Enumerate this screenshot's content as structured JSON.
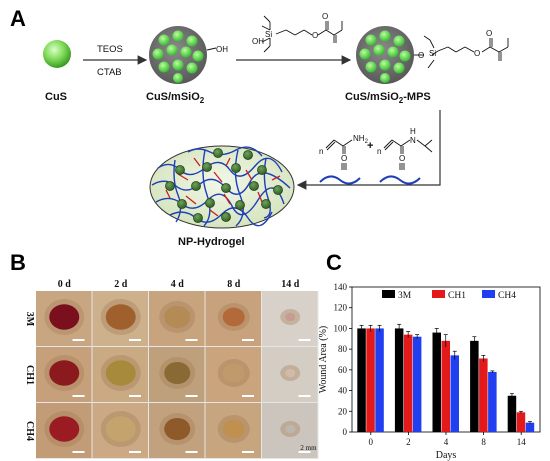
{
  "panels": {
    "a": {
      "letter": "A",
      "reagents_top": "TEOS",
      "reagents_bottom": "CTAB",
      "cus_label": "CuS",
      "cus_msio2_label": "CuS/mSiO",
      "cus_msio2_sub": "2",
      "oh_label": "OH",
      "mps_label_pre": "CuS/mSiO",
      "mps_label_sub": "2",
      "mps_label_post": "-MPS",
      "hydrogel_label": "NP-Hydrogel",
      "plus": "+",
      "nh2": "NH",
      "nh2_sub": "2",
      "h_atom": "H",
      "n_atom": "N",
      "o_atom": "O",
      "si_atom": "Si",
      "n_prefix": "n",
      "colors": {
        "sphere": "#7ed957",
        "shell": "#7a7a7a",
        "gel": "#e3edd2",
        "chain_blue": "#1f3fb8",
        "chain_red": "#cc1f1f"
      }
    },
    "b": {
      "letter": "B",
      "columns": [
        "0 d",
        "2 d",
        "4 d",
        "8 d",
        "14 d"
      ],
      "rows": [
        "3M",
        "CH1",
        "CH4"
      ],
      "scale_label": "2 mm"
    },
    "c": {
      "letter": "C"
    }
  },
  "chart_data": {
    "type": "bar",
    "categories": [
      "0",
      "2",
      "4",
      "8",
      "14"
    ],
    "series": [
      {
        "name": "3M",
        "values": [
          100,
          100,
          96,
          88,
          35
        ],
        "errors": [
          3,
          4,
          4,
          4,
          2
        ],
        "color": "#000000"
      },
      {
        "name": "CH1",
        "values": [
          100,
          94,
          88,
          71,
          19
        ],
        "errors": [
          3,
          3,
          6,
          3,
          1
        ],
        "color": "#e31a1c"
      },
      {
        "name": "CH4",
        "values": [
          100,
          92,
          74,
          58,
          9
        ],
        "errors": [
          3,
          2,
          4,
          1,
          1
        ],
        "color": "#1f3ff0"
      }
    ],
    "xlabel": "Days",
    "ylabel": "Wound Area (%)",
    "ylim": [
      0,
      140
    ],
    "yticks": [
      0,
      20,
      40,
      60,
      80,
      100,
      120,
      140
    ],
    "legend_position": "top-right",
    "grid": false
  }
}
